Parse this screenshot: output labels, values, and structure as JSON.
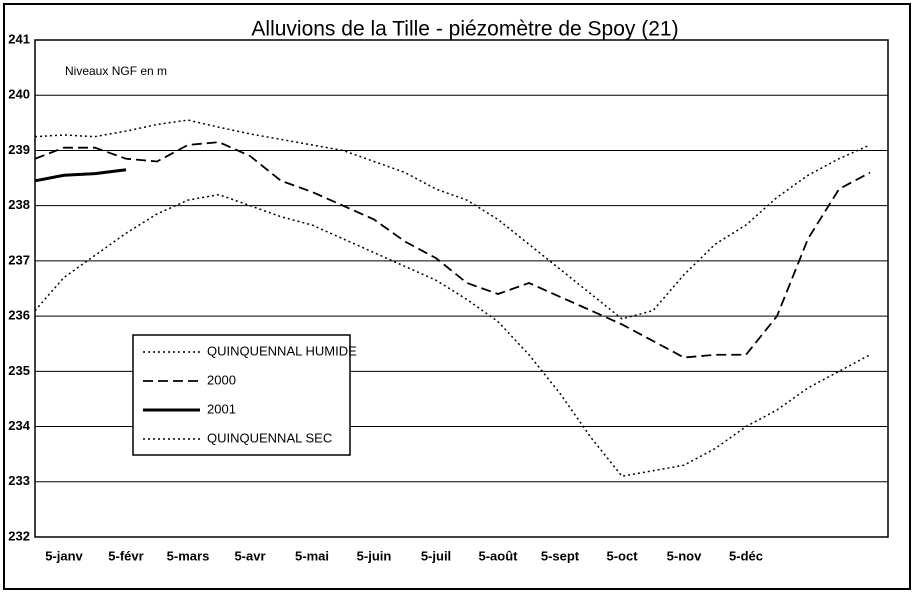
{
  "chart_data": {
    "type": "line",
    "title": "Alluvions de la Tille - piézomètre de Spoy (21)",
    "annotation": "Niveaux NGF en m",
    "categories": [
      null,
      "5-janv",
      null,
      "5-févr",
      null,
      "5-mars",
      null,
      "5-avr",
      null,
      "5-mai",
      null,
      "5-juin",
      null,
      "5-juil",
      null,
      "5-août",
      null,
      "5-sept",
      null,
      "5-oct",
      null,
      "5-nov",
      null,
      "5-déc",
      null,
      null,
      null,
      null
    ],
    "ylim": [
      232,
      241
    ],
    "yticks": [
      232,
      233,
      234,
      235,
      236,
      237,
      238,
      239,
      240,
      241
    ],
    "grid": true,
    "legend": "lower left",
    "series": [
      {
        "name": "QUINQUENNAL HUMIDE",
        "color": "#000000",
        "linestyle": "dotted",
        "values": [
          239.25,
          239.28,
          239.25,
          239.35,
          239.47,
          239.55,
          239.42,
          239.3,
          239.2,
          239.1,
          239.0,
          238.8,
          238.6,
          238.3,
          238.1,
          237.75,
          237.3,
          236.85,
          236.4,
          235.95,
          236.1,
          236.75,
          237.3,
          237.65,
          238.15,
          238.55,
          238.85,
          239.1
        ]
      },
      {
        "name": "2000",
        "color": "#000000",
        "linestyle": "dashed",
        "values": [
          238.85,
          239.05,
          239.05,
          238.85,
          238.8,
          239.1,
          239.15,
          238.9,
          238.45,
          238.25,
          238.0,
          237.75,
          237.35,
          237.05,
          236.6,
          236.4,
          236.6,
          236.35,
          236.1,
          235.85,
          235.55,
          235.25,
          235.3,
          235.3,
          236.0,
          237.4,
          238.3,
          238.6
        ]
      },
      {
        "name": "2001",
        "color": "#000000",
        "linestyle": "solid",
        "values": [
          238.45,
          238.55,
          238.58,
          238.65,
          null,
          null,
          null,
          null,
          null,
          null,
          null,
          null,
          null,
          null,
          null,
          null,
          null,
          null,
          null,
          null,
          null,
          null,
          null,
          null,
          null,
          null,
          null,
          null
        ]
      },
      {
        "name": "QUINQUENNAL SEC",
        "color": "#000000",
        "linestyle": "dotted",
        "values": [
          236.1,
          236.7,
          237.1,
          237.5,
          237.85,
          238.1,
          238.2,
          238.0,
          237.8,
          237.65,
          237.4,
          237.15,
          236.9,
          236.65,
          236.3,
          235.9,
          235.3,
          234.6,
          233.8,
          233.1,
          233.2,
          233.3,
          233.6,
          234.0,
          234.3,
          234.7,
          235.0,
          235.3
        ]
      }
    ]
  }
}
